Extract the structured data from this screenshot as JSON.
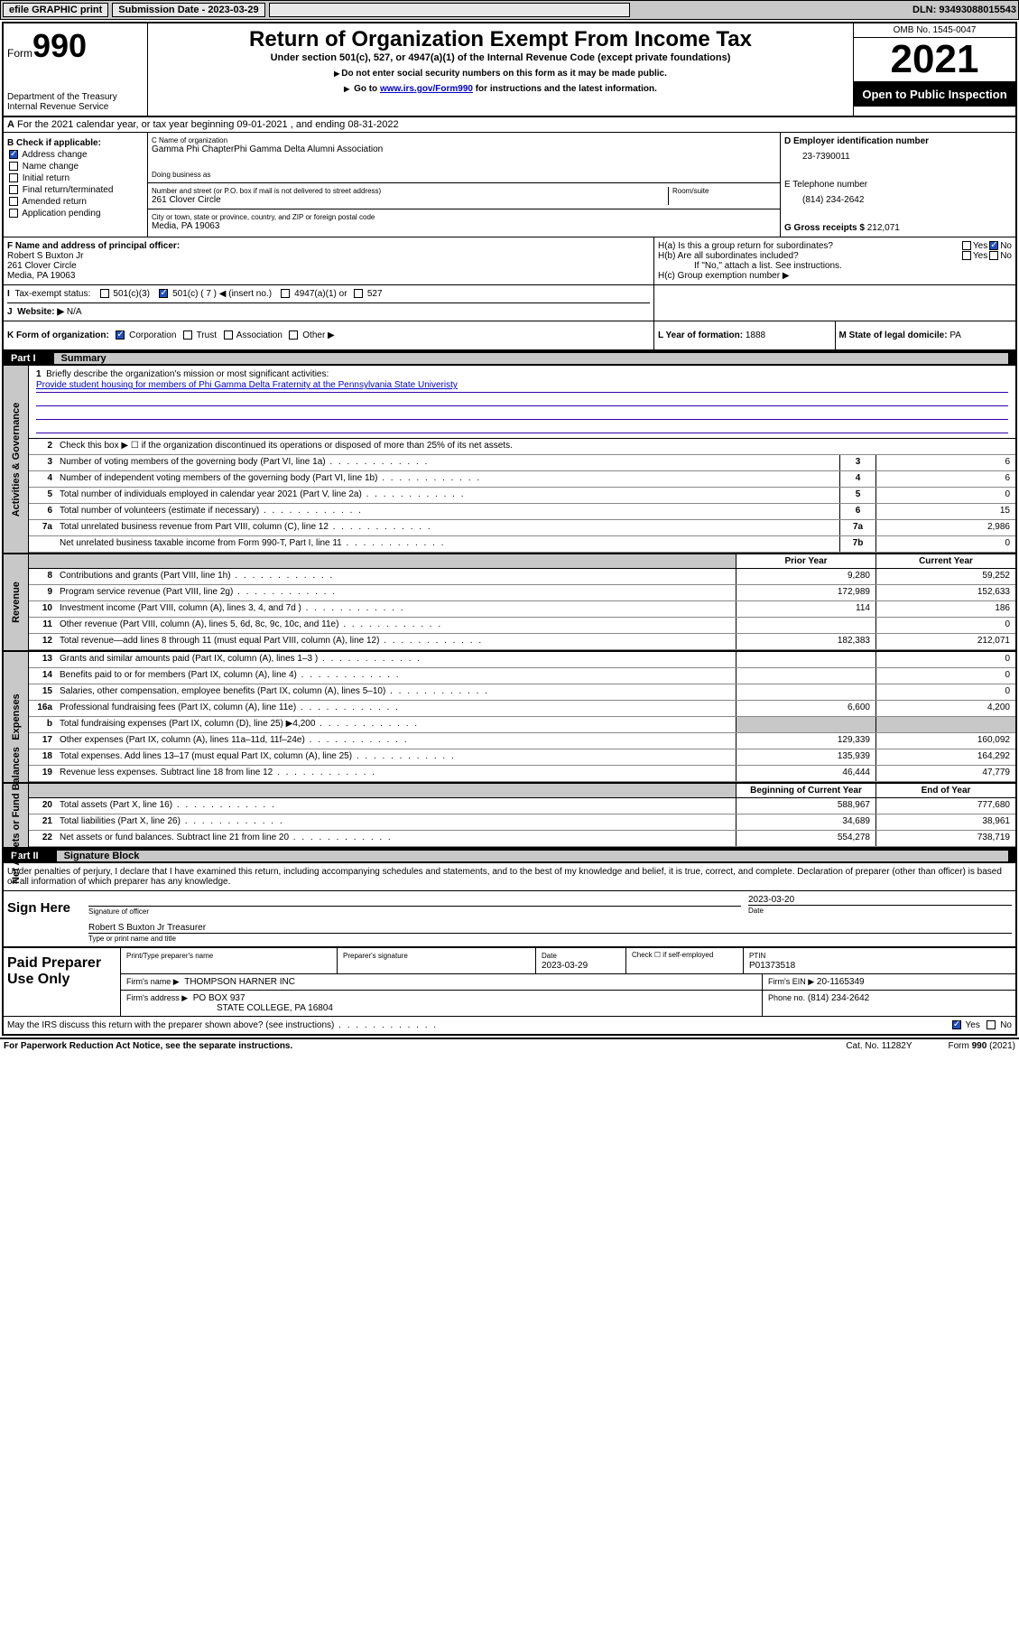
{
  "topbar": {
    "efile": "efile GRAPHIC print",
    "submission": "Submission Date - 2023-03-29",
    "dln": "DLN: 93493088015543"
  },
  "header": {
    "form_label": "Form",
    "form_num": "990",
    "dept": "Department of the Treasury",
    "irs": "Internal Revenue Service",
    "title": "Return of Organization Exempt From Income Tax",
    "sub1": "Under section 501(c), 527, or 4947(a)(1) of the Internal Revenue Code (except private foundations)",
    "sub2": "Do not enter social security numbers on this form as it may be made public.",
    "sub3_a": "Go to ",
    "sub3_link": "www.irs.gov/Form990",
    "sub3_b": " for instructions and the latest information.",
    "omb": "OMB No. 1545-0047",
    "year": "2021",
    "open": "Open to Public Inspection"
  },
  "row_a": "For the 2021 calendar year, or tax year beginning 09-01-2021  , and ending 08-31-2022",
  "box_b": {
    "hdr": "B Check if applicable:",
    "addr_change": "Address change",
    "name_change": "Name change",
    "initial": "Initial return",
    "final": "Final return/terminated",
    "amended": "Amended return",
    "app": "Application pending"
  },
  "box_c": {
    "name_lbl": "C Name of organization",
    "name": "Gamma Phi ChapterPhi Gamma Delta Alumni Association",
    "dba_lbl": "Doing business as",
    "street_lbl": "Number and street (or P.O. box if mail is not delivered to street address)",
    "room_lbl": "Room/suite",
    "street": "261 Clover Circle",
    "city_lbl": "City or town, state or province, country, and ZIP or foreign postal code",
    "city": "Media, PA  19063"
  },
  "box_d": {
    "ein_lbl": "D Employer identification number",
    "ein": "23-7390011",
    "phone_lbl": "E Telephone number",
    "phone": "(814) 234-2642",
    "gross_lbl": "G Gross receipts $",
    "gross": "212,071"
  },
  "box_f": {
    "lbl": "F Name and address of principal officer:",
    "name": "Robert S Buxton Jr",
    "street": "261 Clover Circle",
    "city": "Media, PA  19063"
  },
  "box_h": {
    "ha": "H(a)  Is this a group return for subordinates?",
    "hb": "H(b)  Are all subordinates included?",
    "hb_note": "If \"No,\" attach a list. See instructions.",
    "hc": "H(c)  Group exemption number ▶",
    "yes": "Yes",
    "no": "No"
  },
  "box_i": {
    "lbl": "Tax-exempt status:",
    "c3": "501(c)(3)",
    "c": "501(c) ( 7 ) ◀ (insert no.)",
    "a1": "4947(a)(1) or",
    "s527": "527"
  },
  "box_j": {
    "lbl": "Website: ▶",
    "val": "N/A"
  },
  "box_k": {
    "lbl": "K Form of organization:",
    "corp": "Corporation",
    "trust": "Trust",
    "assoc": "Association",
    "other": "Other ▶"
  },
  "box_l": {
    "lbl": "L Year of formation:",
    "val": "1888"
  },
  "box_m": {
    "lbl": "M State of legal domicile:",
    "val": "PA"
  },
  "part1": {
    "hdr": "Part I",
    "ttl": "Summary",
    "side_gov": "Activities & Governance",
    "side_rev": "Revenue",
    "side_exp": "Expenses",
    "side_net": "Net Assets or Fund Balances",
    "l1_lbl": "Briefly describe the organization's mission or most significant activities:",
    "l1_val": "Provide student housing for members of Phi Gamma Delta Fraternity at the Pennsylvania State Univeristy",
    "l2": "Check this box ▶ ☐  if the organization discontinued its operations or disposed of more than 25% of its net assets.",
    "prior_hdr": "Prior Year",
    "curr_hdr": "Current Year",
    "boy_hdr": "Beginning of Current Year",
    "eoy_hdr": "End of Year",
    "lines_single": [
      {
        "n": "3",
        "t": "Number of voting members of the governing body (Part VI, line 1a)",
        "l": "3",
        "v": "6"
      },
      {
        "n": "4",
        "t": "Number of independent voting members of the governing body (Part VI, line 1b)",
        "l": "4",
        "v": "6"
      },
      {
        "n": "5",
        "t": "Total number of individuals employed in calendar year 2021 (Part V, line 2a)",
        "l": "5",
        "v": "0"
      },
      {
        "n": "6",
        "t": "Total number of volunteers (estimate if necessary)",
        "l": "6",
        "v": "15"
      },
      {
        "n": "7a",
        "t": "Total unrelated business revenue from Part VIII, column (C), line 12",
        "l": "7a",
        "v": "2,986"
      },
      {
        "n": "",
        "t": "Net unrelated business taxable income from Form 990-T, Part I, line 11",
        "l": "7b",
        "v": "0"
      }
    ],
    "lines_rev": [
      {
        "n": "8",
        "t": "Contributions and grants (Part VIII, line 1h)",
        "p": "9,280",
        "c": "59,252"
      },
      {
        "n": "9",
        "t": "Program service revenue (Part VIII, line 2g)",
        "p": "172,989",
        "c": "152,633"
      },
      {
        "n": "10",
        "t": "Investment income (Part VIII, column (A), lines 3, 4, and 7d )",
        "p": "114",
        "c": "186"
      },
      {
        "n": "11",
        "t": "Other revenue (Part VIII, column (A), lines 5, 6d, 8c, 9c, 10c, and 11e)",
        "p": "",
        "c": "0"
      },
      {
        "n": "12",
        "t": "Total revenue—add lines 8 through 11 (must equal Part VIII, column (A), line 12)",
        "p": "182,383",
        "c": "212,071"
      }
    ],
    "lines_exp": [
      {
        "n": "13",
        "t": "Grants and similar amounts paid (Part IX, column (A), lines 1–3 )",
        "p": "",
        "c": "0",
        "g": false
      },
      {
        "n": "14",
        "t": "Benefits paid to or for members (Part IX, column (A), line 4)",
        "p": "",
        "c": "0",
        "g": false
      },
      {
        "n": "15",
        "t": "Salaries, other compensation, employee benefits (Part IX, column (A), lines 5–10)",
        "p": "",
        "c": "0",
        "g": false
      },
      {
        "n": "16a",
        "t": "Professional fundraising fees (Part IX, column (A), line 11e)",
        "p": "6,600",
        "c": "4,200",
        "g": false
      },
      {
        "n": "b",
        "t": "Total fundraising expenses (Part IX, column (D), line 25) ▶4,200",
        "p": "",
        "c": "",
        "g": true
      },
      {
        "n": "17",
        "t": "Other expenses (Part IX, column (A), lines 11a–11d, 11f–24e)",
        "p": "129,339",
        "c": "160,092",
        "g": false
      },
      {
        "n": "18",
        "t": "Total expenses. Add lines 13–17 (must equal Part IX, column (A), line 25)",
        "p": "135,939",
        "c": "164,292",
        "g": false
      },
      {
        "n": "19",
        "t": "Revenue less expenses. Subtract line 18 from line 12",
        "p": "46,444",
        "c": "47,779",
        "g": false
      }
    ],
    "lines_net": [
      {
        "n": "20",
        "t": "Total assets (Part X, line 16)",
        "p": "588,967",
        "c": "777,680"
      },
      {
        "n": "21",
        "t": "Total liabilities (Part X, line 26)",
        "p": "34,689",
        "c": "38,961"
      },
      {
        "n": "22",
        "t": "Net assets or fund balances. Subtract line 21 from line 20",
        "p": "554,278",
        "c": "738,719"
      }
    ]
  },
  "part2": {
    "hdr": "Part II",
    "ttl": "Signature Block",
    "decl": "Under penalties of perjury, I declare that I have examined this return, including accompanying schedules and statements, and to the best of my knowledge and belief, it is true, correct, and complete. Declaration of preparer (other than officer) is based on all information of which preparer has any knowledge.",
    "sign_here": "Sign Here",
    "sig_officer": "Signature of officer",
    "sig_date_lbl": "Date",
    "sig_date": "2023-03-20",
    "officer": "Robert S Buxton Jr Treasurer",
    "officer_lbl": "Type or print name and title",
    "paid": "Paid Preparer Use Only",
    "prep_name_lbl": "Print/Type preparer's name",
    "prep_sig_lbl": "Preparer's signature",
    "prep_date_lbl": "Date",
    "prep_date": "2023-03-29",
    "check_self": "Check ☐ if self-employed",
    "ptin_lbl": "PTIN",
    "ptin": "P01373518",
    "firm_name_lbl": "Firm's name    ▶",
    "firm_name": "THOMPSON HARNER INC",
    "firm_ein_lbl": "Firm's EIN ▶",
    "firm_ein": "20-1165349",
    "firm_addr_lbl": "Firm's address ▶",
    "firm_addr1": "PO BOX 937",
    "firm_addr2": "STATE COLLEGE, PA  16804",
    "firm_phone_lbl": "Phone no.",
    "firm_phone": "(814) 234-2642",
    "discuss": "May the IRS discuss this return with the preparer shown above? (see instructions)"
  },
  "footer": {
    "f1": "For Paperwork Reduction Act Notice, see the separate instructions.",
    "f2": "Cat. No. 11282Y",
    "f3": "Form 990 (2021)"
  }
}
